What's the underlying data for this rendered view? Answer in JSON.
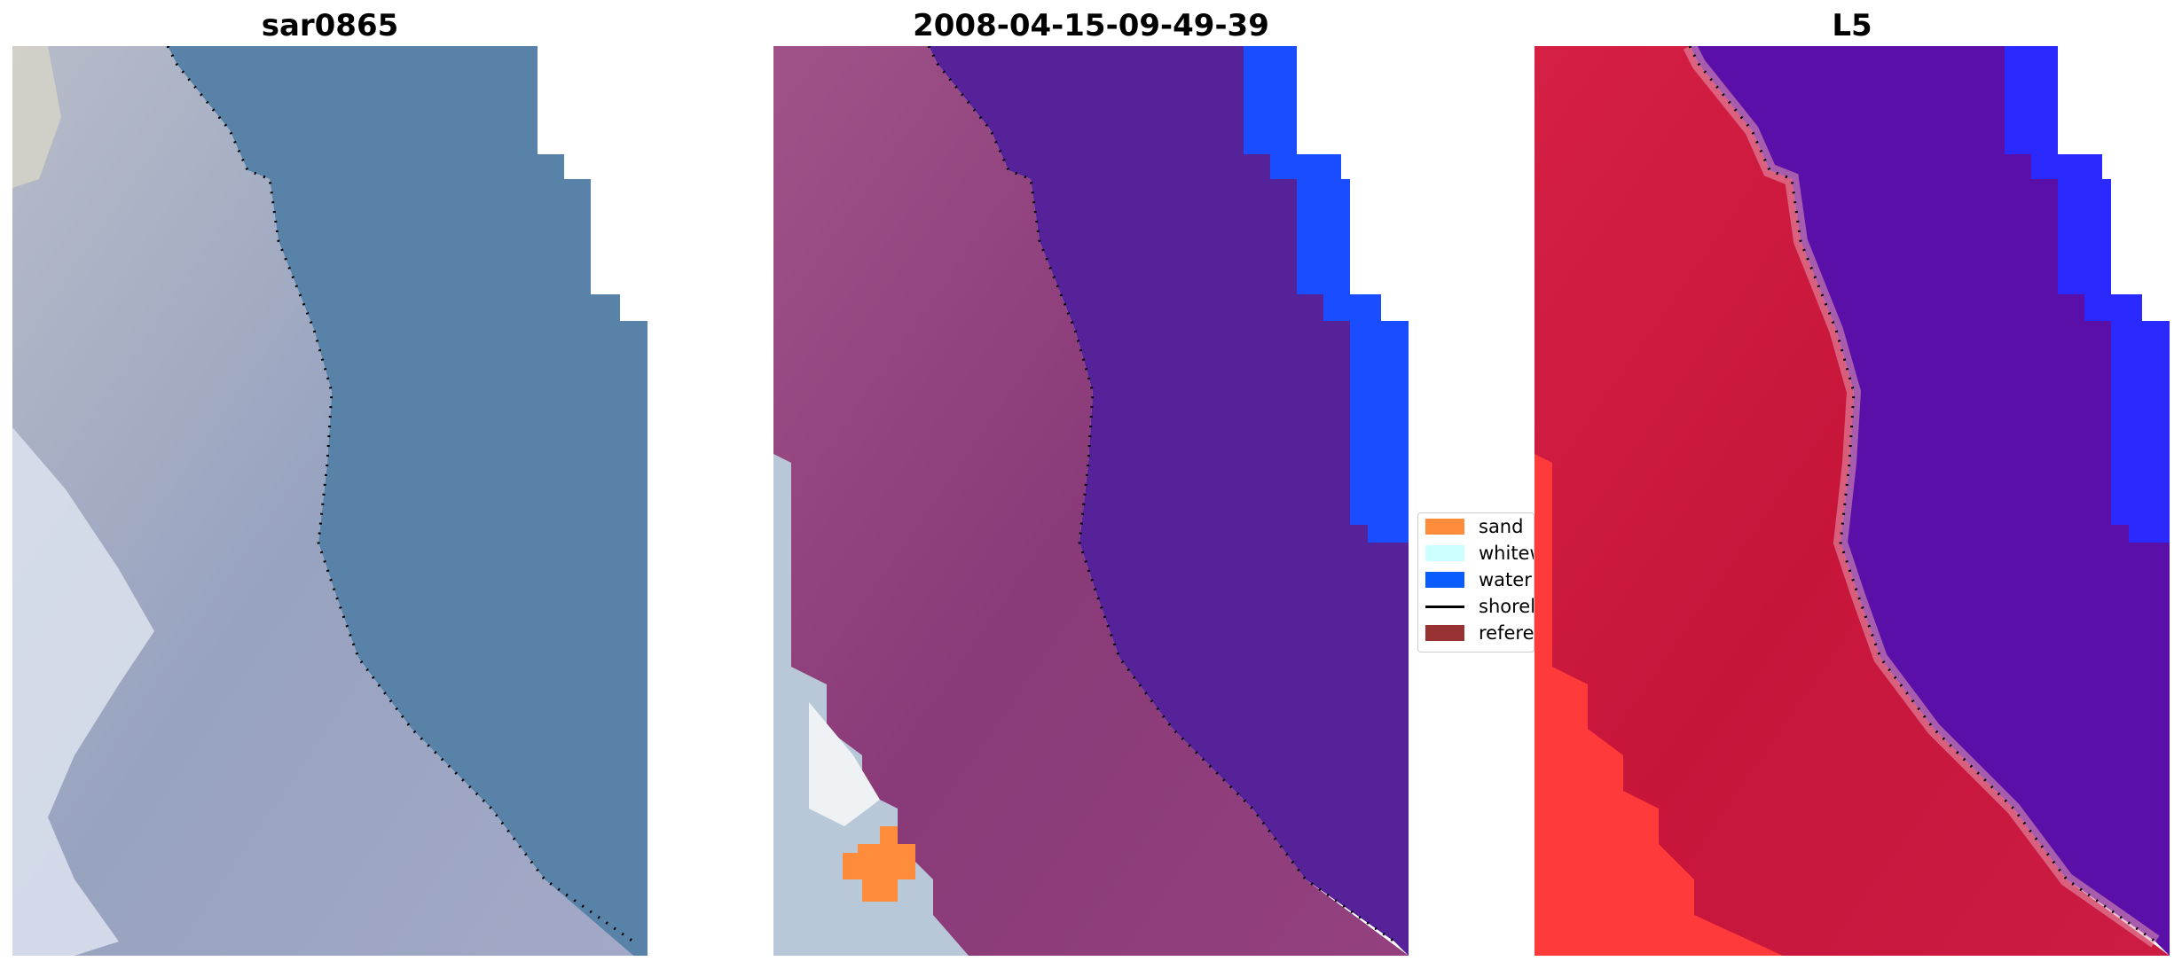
{
  "panels": [
    {
      "title": "sar0865"
    },
    {
      "title": "2008-04-15-09-49-39"
    },
    {
      "title": "L5"
    }
  ],
  "legend": {
    "items": [
      {
        "label": "sand",
        "color": "#ff8c3a",
        "kind": "patch"
      },
      {
        "label": "whitew",
        "color": "#ccffff",
        "kind": "patch"
      },
      {
        "label": "water",
        "color": "#0a5cff",
        "kind": "patch"
      },
      {
        "label": "shorel",
        "color": "#000000",
        "kind": "line"
      },
      {
        "label": "referer",
        "color": "#993333",
        "kind": "patch"
      }
    ]
  },
  "colors": {
    "water_rgb": "#5882a8",
    "land_rgb": "#9aa6c4",
    "water_class": "#55229a",
    "land_class": "#8a3a78",
    "sea_pixels": "#1a4dff",
    "sand_class": "#ff8c3a",
    "l5_land": "#c7153a",
    "l5_water": "#5a10a8",
    "l5_bright": "#ff3a3a",
    "l5_blue": "#2a2aff"
  }
}
